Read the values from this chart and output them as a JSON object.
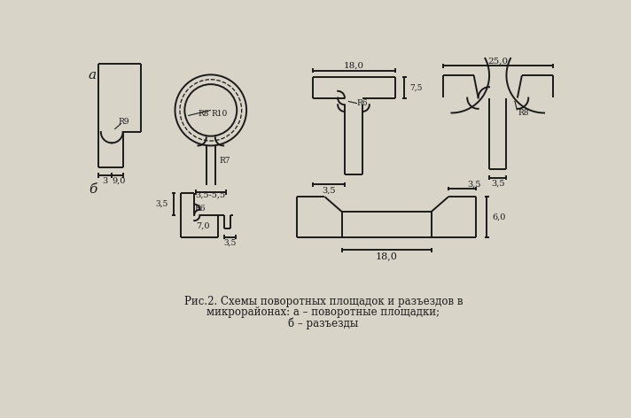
{
  "bg_color": "#d8d4c8",
  "line_color": "#1a1a1a",
  "fig_width": 7.12,
  "fig_height": 4.72,
  "caption_line1": "Рис.2. Схемы поворотных площадок и разъездов в",
  "caption_line2": "микрорайонах: а – поворотные площадки;",
  "caption_line3": "б – разъезды",
  "label_a": "а",
  "label_b": "б"
}
